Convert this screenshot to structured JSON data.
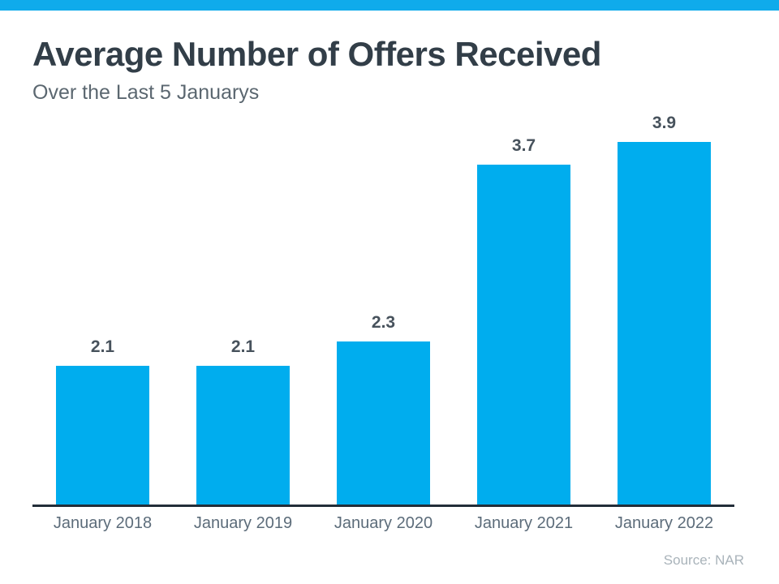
{
  "header": {
    "title": "Average Number of Offers Received",
    "subtitle": "Over the Last 5 Januarys"
  },
  "footer": {
    "source": "Source: NAR"
  },
  "colors": {
    "accent_strip": "#0fabeb",
    "bar_fill": "#00adee",
    "title_text": "#323e48",
    "subtitle_text": "#5b6770",
    "value_label_text": "#47525c",
    "axis_label_text": "#5c6c7a",
    "axis_line": "#232e39",
    "source_text": "#a9b3ba"
  },
  "chart_data": {
    "type": "bar",
    "title": "Average Number of Offers Received",
    "subtitle": "Over the Last 5 Januarys",
    "categories": [
      "January 2018",
      "January 2019",
      "January 2020",
      "January 2021",
      "January 2022"
    ],
    "values": [
      2.1,
      2.1,
      2.3,
      3.7,
      3.9
    ],
    "xlabel": "",
    "ylabel": "",
    "ylim": [
      1.0,
      4.0
    ],
    "grid": false,
    "legend": false,
    "data_labels": true,
    "bar_color": "#00adee",
    "annotation": "Source: NAR"
  }
}
